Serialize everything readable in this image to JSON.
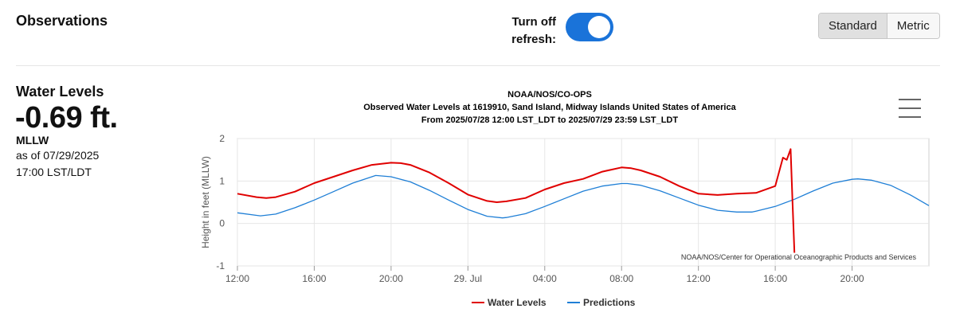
{
  "header": {
    "title": "Observations",
    "refresh_label": "Turn off refresh:",
    "refresh_on": true,
    "units": [
      "Standard",
      "Metric"
    ],
    "selected_unit": "Standard"
  },
  "summary": {
    "heading": "Water Levels",
    "value": "-0.69 ft.",
    "datum": "MLLW",
    "as_of": "as of 07/29/2025",
    "time": "17:00 LST/LDT"
  },
  "icons": {
    "chart_menu": "hamburger-menu-icon"
  },
  "colors": {
    "water_levels": "#e00000",
    "predictions": "#1f7fd6",
    "toggle": "#1a73d9"
  },
  "chart_data": {
    "type": "line",
    "title_lines": [
      "NOAA/NOS/CO-OPS",
      "Observed Water Levels at 1619910, Sand Island, Midway Islands United States of America",
      "From 2025/07/28 12:00 LST_LDT to 2025/07/29 23:59 LST_LDT"
    ],
    "ylabel": "Height in feet (MLLW)",
    "ylim": [
      -1,
      2
    ],
    "yticks": [
      -1,
      0,
      1,
      2
    ],
    "xlim_hours": [
      0,
      36
    ],
    "xticks": [
      {
        "h": 0,
        "label": "12:00"
      },
      {
        "h": 4,
        "label": "16:00"
      },
      {
        "h": 8,
        "label": "20:00"
      },
      {
        "h": 12,
        "label": "29. Jul"
      },
      {
        "h": 16,
        "label": "04:00"
      },
      {
        "h": 20,
        "label": "08:00"
      },
      {
        "h": 24,
        "label": "12:00"
      },
      {
        "h": 28,
        "label": "16:00"
      },
      {
        "h": 32,
        "label": "20:00"
      }
    ],
    "credit": "NOAA/NOS/Center for Operational Oceanographic Products and Services",
    "legend": [
      "Water Levels",
      "Predictions"
    ],
    "series": [
      {
        "name": "Water Levels",
        "x_hours": [
          0,
          1,
          1.5,
          2,
          3,
          4,
          5,
          6,
          7,
          8,
          8.5,
          9,
          10,
          11,
          12,
          13,
          13.5,
          14,
          15,
          16,
          17,
          18,
          19,
          20,
          20.5,
          21,
          22,
          23,
          24,
          25,
          26,
          27,
          28,
          28.4,
          28.6,
          28.8,
          28.9,
          29.0
        ],
        "values": [
          0.7,
          0.62,
          0.6,
          0.62,
          0.75,
          0.95,
          1.1,
          1.25,
          1.38,
          1.43,
          1.42,
          1.38,
          1.2,
          0.95,
          0.68,
          0.53,
          0.5,
          0.52,
          0.6,
          0.8,
          0.95,
          1.05,
          1.22,
          1.32,
          1.3,
          1.25,
          1.1,
          0.88,
          0.7,
          0.67,
          0.7,
          0.72,
          0.88,
          1.55,
          1.5,
          1.75,
          0.5,
          -0.69
        ]
      },
      {
        "name": "Predictions",
        "x_hours": [
          0,
          1,
          1.2,
          2,
          3,
          4,
          5,
          6,
          7,
          7.2,
          8,
          9,
          10,
          11,
          12,
          13,
          13.8,
          14,
          15,
          16,
          17,
          18,
          19,
          20,
          20.3,
          21,
          22,
          23,
          24,
          25,
          26,
          26.8,
          27,
          28,
          29,
          30,
          31,
          32,
          32.3,
          33,
          34,
          35,
          36
        ],
        "values": [
          0.25,
          0.19,
          0.18,
          0.22,
          0.37,
          0.55,
          0.75,
          0.95,
          1.1,
          1.13,
          1.1,
          0.98,
          0.78,
          0.55,
          0.33,
          0.17,
          0.13,
          0.14,
          0.23,
          0.4,
          0.58,
          0.76,
          0.88,
          0.94,
          0.94,
          0.9,
          0.77,
          0.6,
          0.43,
          0.31,
          0.27,
          0.27,
          0.29,
          0.4,
          0.57,
          0.77,
          0.95,
          1.04,
          1.05,
          1.02,
          0.9,
          0.68,
          0.42
        ]
      }
    ]
  }
}
